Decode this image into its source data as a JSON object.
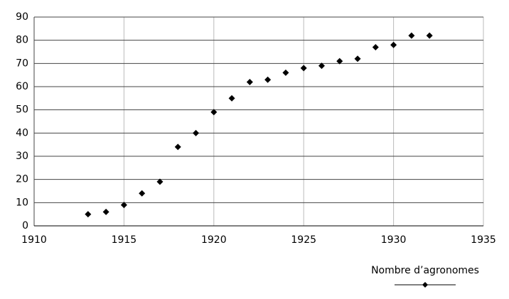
{
  "chart_data": {
    "type": "scatter",
    "x": [
      1913,
      1914,
      1915,
      1916,
      1917,
      1918,
      1919,
      1920,
      1921,
      1922,
      1923,
      1924,
      1925,
      1926,
      1927,
      1928,
      1929,
      1930,
      1931,
      1932
    ],
    "series": [
      {
        "name": "Nombre d’agronomes",
        "color": "#000000",
        "values": [
          5,
          6,
          9,
          14,
          19,
          34,
          40,
          49,
          55,
          62,
          63,
          66,
          68,
          69,
          71,
          72,
          77,
          78,
          82,
          82
        ]
      }
    ],
    "xlim": [
      1910,
      1935
    ],
    "xticks": [
      1910,
      1915,
      1920,
      1925,
      1930,
      1935
    ],
    "ylim": [
      0,
      90
    ],
    "yticks": [
      0,
      10,
      20,
      30,
      40,
      50,
      60,
      70,
      80,
      90
    ],
    "grid": true,
    "legend": "bottom-right"
  }
}
